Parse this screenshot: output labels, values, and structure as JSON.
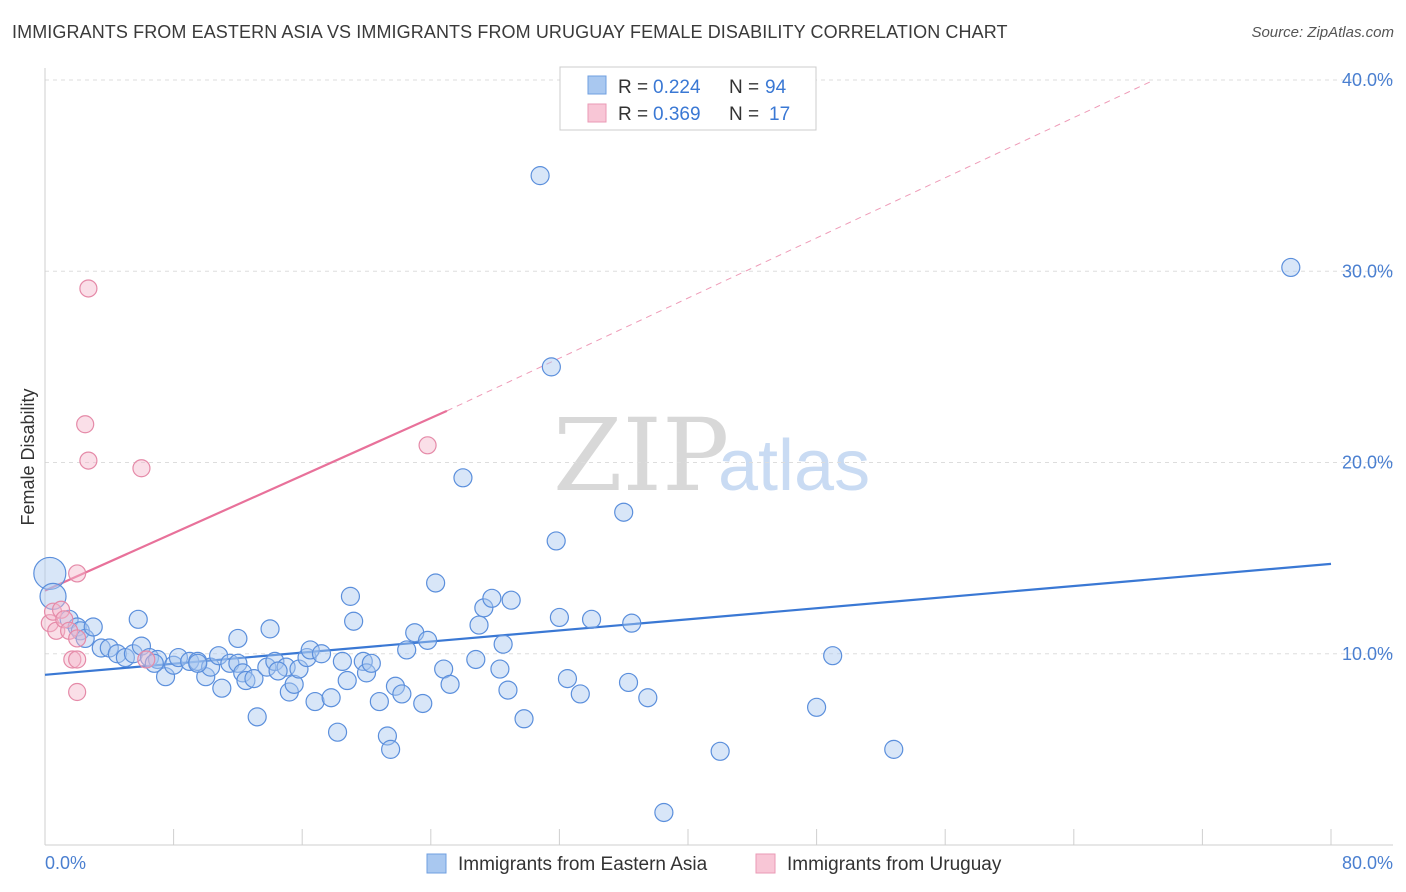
{
  "title": "IMMIGRANTS FROM EASTERN ASIA VS IMMIGRANTS FROM URUGUAY FEMALE DISABILITY CORRELATION CHART",
  "source": "Source: ZipAtlas.com",
  "watermark": {
    "zip": "ZIP",
    "atlas": "atlas"
  },
  "colors": {
    "blue": "#3a78d4",
    "blue_fill": "#a9c8f0",
    "pink": "#e8719a",
    "pink_fill": "#f5b8cc",
    "grid": "#dddddd"
  },
  "legend": {
    "rows": [
      {
        "r_label": "R =",
        "r_value": "0.224",
        "n_label": "N =",
        "n_value": "94"
      },
      {
        "r_label": "R =",
        "r_value": "0.369",
        "n_label": "N =",
        "n_value": "17"
      }
    ]
  },
  "chart_data": {
    "type": "scatter",
    "ylabel": "Female Disability",
    "xlim": [
      0,
      80
    ],
    "ylim": [
      0,
      40
    ],
    "x_tick_labels": [
      "0.0%",
      "80.0%"
    ],
    "y_tick_labels": [
      "10.0%",
      "20.0%",
      "30.0%",
      "40.0%"
    ],
    "y_ticks": [
      10,
      20,
      30,
      40
    ],
    "grid": true,
    "series": [
      {
        "name": "Immigrants from Eastern Asia",
        "color": "#3a78d4",
        "trend": {
          "x": [
            0,
            80
          ],
          "y": [
            8.9,
            14.7
          ]
        },
        "points": [
          [
            0.3,
            14.2
          ],
          [
            0.5,
            13.0
          ],
          [
            1.5,
            11.8
          ],
          [
            2.0,
            11.4
          ],
          [
            2.2,
            11.2
          ],
          [
            2.5,
            10.8
          ],
          [
            3.0,
            11.4
          ],
          [
            3.5,
            10.3
          ],
          [
            4.0,
            10.3
          ],
          [
            4.5,
            10.0
          ],
          [
            5.0,
            9.8
          ],
          [
            5.5,
            10.0
          ],
          [
            6.0,
            10.4
          ],
          [
            5.8,
            11.8
          ],
          [
            6.5,
            9.8
          ],
          [
            7.0,
            9.7
          ],
          [
            7.5,
            8.8
          ],
          [
            8.0,
            9.4
          ],
          [
            8.3,
            9.8
          ],
          [
            9.0,
            9.6
          ],
          [
            9.5,
            9.6
          ],
          [
            10.0,
            8.8
          ],
          [
            10.3,
            9.3
          ],
          [
            10.8,
            9.9
          ],
          [
            11.0,
            8.2
          ],
          [
            11.5,
            9.5
          ],
          [
            12.0,
            9.5
          ],
          [
            12.3,
            9.0
          ],
          [
            12.0,
            10.8
          ],
          [
            12.5,
            8.6
          ],
          [
            13.0,
            8.7
          ],
          [
            13.2,
            6.7
          ],
          [
            13.8,
            9.3
          ],
          [
            14.0,
            11.3
          ],
          [
            14.3,
            9.6
          ],
          [
            15.0,
            9.3
          ],
          [
            15.2,
            8.0
          ],
          [
            15.5,
            8.4
          ],
          [
            15.8,
            9.2
          ],
          [
            16.3,
            9.8
          ],
          [
            16.5,
            10.2
          ],
          [
            16.8,
            7.5
          ],
          [
            17.2,
            10.0
          ],
          [
            17.8,
            7.7
          ],
          [
            18.2,
            5.9
          ],
          [
            18.5,
            9.6
          ],
          [
            18.8,
            8.6
          ],
          [
            19.0,
            13.0
          ],
          [
            19.2,
            11.7
          ],
          [
            19.8,
            9.6
          ],
          [
            20.0,
            9.0
          ],
          [
            20.3,
            9.5
          ],
          [
            20.8,
            7.5
          ],
          [
            21.3,
            5.7
          ],
          [
            21.5,
            5.0
          ],
          [
            21.8,
            8.3
          ],
          [
            22.2,
            7.9
          ],
          [
            22.5,
            10.2
          ],
          [
            23.0,
            11.1
          ],
          [
            23.5,
            7.4
          ],
          [
            23.8,
            10.7
          ],
          [
            24.3,
            13.7
          ],
          [
            24.8,
            9.2
          ],
          [
            25.2,
            8.4
          ],
          [
            26.0,
            19.2
          ],
          [
            26.8,
            9.7
          ],
          [
            27.0,
            11.5
          ],
          [
            27.3,
            12.4
          ],
          [
            27.8,
            12.9
          ],
          [
            28.3,
            9.2
          ],
          [
            28.5,
            10.5
          ],
          [
            28.8,
            8.1
          ],
          [
            29.0,
            12.8
          ],
          [
            29.8,
            6.6
          ],
          [
            30.8,
            35.0
          ],
          [
            31.5,
            25.0
          ],
          [
            31.8,
            15.9
          ],
          [
            32.0,
            11.9
          ],
          [
            32.5,
            8.7
          ],
          [
            33.3,
            7.9
          ],
          [
            34.0,
            11.8
          ],
          [
            36.0,
            17.4
          ],
          [
            36.3,
            8.5
          ],
          [
            36.5,
            11.6
          ],
          [
            37.5,
            7.7
          ],
          [
            38.5,
            1.7
          ],
          [
            42.0,
            4.9
          ],
          [
            48.0,
            7.2
          ],
          [
            49.0,
            9.9
          ],
          [
            52.8,
            5.0
          ],
          [
            77.5,
            30.2
          ],
          [
            9.5,
            9.5
          ],
          [
            14.5,
            9.1
          ],
          [
            6.8,
            9.5
          ]
        ]
      },
      {
        "name": "Immigrants from Uruguay",
        "color": "#e8719a",
        "trend": {
          "x": [
            0,
            25
          ],
          "y": [
            13.3,
            22.7
          ]
        },
        "trend_ext": {
          "x": [
            25,
            69
          ],
          "y": [
            22.7,
            40.0
          ]
        },
        "points": [
          [
            0.3,
            11.6
          ],
          [
            0.5,
            12.2
          ],
          [
            0.7,
            11.2
          ],
          [
            1.0,
            12.3
          ],
          [
            1.2,
            11.8
          ],
          [
            1.5,
            11.2
          ],
          [
            1.7,
            9.7
          ],
          [
            2.0,
            10.8
          ],
          [
            2.0,
            8.0
          ],
          [
            2.0,
            9.7
          ],
          [
            2.0,
            14.2
          ],
          [
            2.5,
            22.0
          ],
          [
            2.7,
            20.1
          ],
          [
            2.7,
            29.1
          ],
          [
            6.0,
            19.7
          ],
          [
            6.3,
            9.7
          ],
          [
            23.8,
            20.9
          ]
        ]
      }
    ]
  }
}
